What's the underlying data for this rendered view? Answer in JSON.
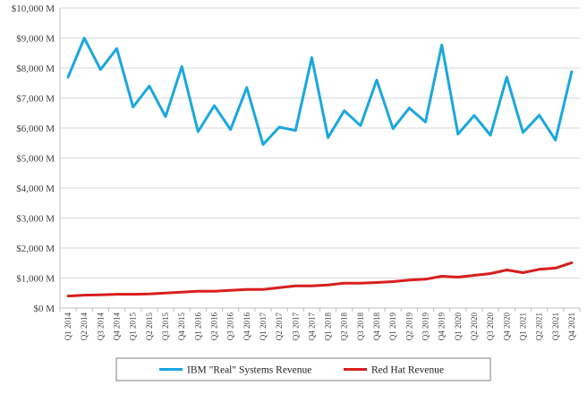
{
  "colors": {
    "ibm": "#1aa7df",
    "redhat": "#d81e1e",
    "grid": "#d9d9d9",
    "axis": "#bfbfbf"
  },
  "chart_data": {
    "type": "line",
    "title": "",
    "xlabel": "",
    "ylabel": "",
    "ylim": [
      0,
      10000
    ],
    "grid": true,
    "legend_position": "bottom",
    "y_ticks": [
      "$0 M",
      "$1,000 M",
      "$2,000 M",
      "$3,000 M",
      "$4,000 M",
      "$5,000 M",
      "$6,000 M",
      "$7,000 M",
      "$8,000 M",
      "$9,000 M",
      "$10,000 M"
    ],
    "categories": [
      "Q1 2014",
      "Q2 2014",
      "Q3 2014",
      "Q4 2014",
      "Q1 2015",
      "Q2 2015",
      "Q3 2015",
      "Q4 2015",
      "Q1 2016",
      "Q2 2016",
      "Q3 2016",
      "Q4 2016",
      "Q1 2017",
      "Q2 2017",
      "Q3 2017",
      "Q4 2017",
      "Q1 2018",
      "Q2 2018",
      "Q3 2018",
      "Q4 2018",
      "Q1 2019",
      "Q2 2019",
      "Q3 2019",
      "Q4 2019",
      "Q1 2020",
      "Q2 2020",
      "Q3 2020",
      "Q4 2020",
      "Q1 2021",
      "Q2 2021",
      "Q3 2021",
      "Q4 2021"
    ],
    "series": [
      {
        "name": "IBM \"Real\" Systems Revenue",
        "color_key": "ibm",
        "values": [
          7700,
          9000,
          7950,
          8650,
          6700,
          7400,
          6380,
          8050,
          5880,
          6750,
          5950,
          7350,
          5450,
          6030,
          5920,
          8350,
          5680,
          6580,
          6080,
          7600,
          5980,
          6670,
          6200,
          8770,
          5800,
          6420,
          5760,
          7700,
          5850,
          6430,
          5600,
          7880
        ]
      },
      {
        "name": "Red Hat Revenue",
        "color_key": "redhat",
        "values": [
          400,
          430,
          440,
          460,
          460,
          470,
          500,
          530,
          560,
          560,
          590,
          620,
          620,
          680,
          740,
          740,
          770,
          830,
          830,
          850,
          880,
          930,
          960,
          1060,
          1030,
          1090,
          1150,
          1270,
          1180,
          1290,
          1330,
          1510
        ]
      }
    ]
  }
}
